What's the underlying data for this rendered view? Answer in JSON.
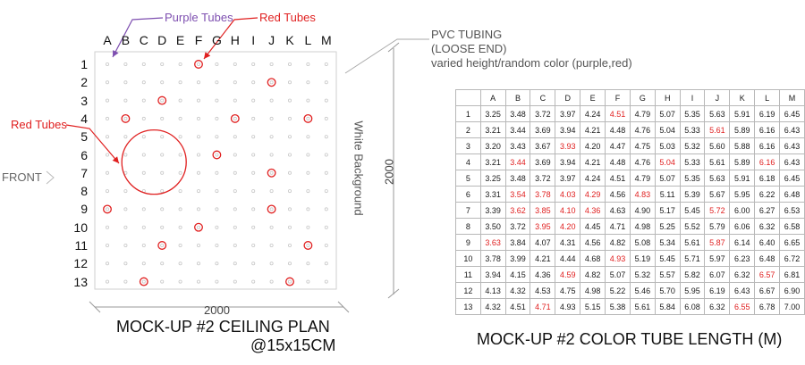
{
  "plan": {
    "columns": [
      "A",
      "B",
      "C",
      "D",
      "E",
      "F",
      "G",
      "H",
      "I",
      "J",
      "K",
      "L",
      "M"
    ],
    "rows": [
      "1",
      "2",
      "3",
      "4",
      "5",
      "6",
      "7",
      "8",
      "9",
      "10",
      "11",
      "12",
      "13"
    ],
    "red_tubes": [
      {
        "col": "F",
        "row": 1
      },
      {
        "col": "J",
        "row": 2
      },
      {
        "col": "D",
        "row": 3
      },
      {
        "col": "B",
        "row": 4
      },
      {
        "col": "H",
        "row": 4
      },
      {
        "col": "L",
        "row": 4
      },
      {
        "col": "G",
        "row": 6
      },
      {
        "col": "J",
        "row": 7
      },
      {
        "col": "A",
        "row": 9
      },
      {
        "col": "J",
        "row": 9
      },
      {
        "col": "F",
        "row": 10
      },
      {
        "col": "D",
        "row": 11
      },
      {
        "col": "L",
        "row": 11
      },
      {
        "col": "K",
        "row": 13
      },
      {
        "col": "C",
        "row": 13
      }
    ],
    "large_tube": {
      "col": "D",
      "row": 6.5
    },
    "callouts": {
      "purple": "Purple Tubes",
      "red_top": "Red Tubes",
      "red_left": "Red Tubes"
    },
    "front_label": "FRONT",
    "white_background_label": "White Background",
    "dim_width": "2000",
    "dim_height": "2000",
    "note_lines": [
      "PVC TUBING",
      "(LOOSE END)",
      "varied height/random color (purple,red)"
    ],
    "title_lines": [
      "MOCK-UP #2 CEILING PLAN",
      "@15x15CM"
    ]
  },
  "table": {
    "title": "MOCK-UP #2 COLOR TUBE LENGTH (M)",
    "headers": [
      "A",
      "B",
      "C",
      "D",
      "E",
      "F",
      "G",
      "H",
      "I",
      "J",
      "K",
      "L",
      "M"
    ],
    "rows": [
      {
        "n": "1",
        "cells": [
          "3.25",
          "3.48",
          "3.72",
          "3.97",
          "4.24",
          "4.51",
          "4.79",
          "5.07",
          "5.35",
          "5.63",
          "5.91",
          "6.19",
          "6.45"
        ],
        "red": [
          5
        ]
      },
      {
        "n": "2",
        "cells": [
          "3.21",
          "3.44",
          "3.69",
          "3.94",
          "4.21",
          "4.48",
          "4.76",
          "5.04",
          "5.33",
          "5.61",
          "5.89",
          "6.16",
          "6.43"
        ],
        "red": [
          9
        ]
      },
      {
        "n": "3",
        "cells": [
          "3.20",
          "3.43",
          "3.67",
          "3.93",
          "4.20",
          "4.47",
          "4.75",
          "5.03",
          "5.32",
          "5.60",
          "5.88",
          "6.16",
          "6.43"
        ],
        "red": [
          3
        ]
      },
      {
        "n": "4",
        "cells": [
          "3.21",
          "3.44",
          "3.69",
          "3.94",
          "4.21",
          "4.48",
          "4.76",
          "5.04",
          "5.33",
          "5.61",
          "5.89",
          "6.16",
          "6.43"
        ],
        "red": [
          1,
          7,
          11
        ]
      },
      {
        "n": "5",
        "cells": [
          "3.25",
          "3.48",
          "3.72",
          "3.97",
          "4.24",
          "4.51",
          "4.79",
          "5.07",
          "5.35",
          "5.63",
          "5.91",
          "6.18",
          "6.45"
        ],
        "red": []
      },
      {
        "n": "6",
        "cells": [
          "3.31",
          "3.54",
          "3.78",
          "4.03",
          "4.29",
          "4.56",
          "4.83",
          "5.11",
          "5.39",
          "5.67",
          "5.95",
          "6.22",
          "6.48"
        ],
        "red": [
          1,
          2,
          3,
          4,
          6
        ]
      },
      {
        "n": "7",
        "cells": [
          "3.39",
          "3.62",
          "3.85",
          "4.10",
          "4.36",
          "4.63",
          "4.90",
          "5.17",
          "5.45",
          "5.72",
          "6.00",
          "6.27",
          "6.53"
        ],
        "red": [
          1,
          2,
          3,
          4,
          9
        ]
      },
      {
        "n": "8",
        "cells": [
          "3.50",
          "3.72",
          "3.95",
          "4.20",
          "4.45",
          "4.71",
          "4.98",
          "5.25",
          "5.52",
          "5.79",
          "6.06",
          "6.32",
          "6.58"
        ],
        "red": [
          2,
          3
        ]
      },
      {
        "n": "9",
        "cells": [
          "3.63",
          "3.84",
          "4.07",
          "4.31",
          "4.56",
          "4.82",
          "5.08",
          "5.34",
          "5.61",
          "5.87",
          "6.14",
          "6.40",
          "6.65"
        ],
        "red": [
          0,
          9
        ]
      },
      {
        "n": "10",
        "cells": [
          "3.78",
          "3.99",
          "4.21",
          "4.44",
          "4.68",
          "4.93",
          "5.19",
          "5.45",
          "5.71",
          "5.97",
          "6.23",
          "6.48",
          "6.72"
        ],
        "red": [
          5
        ]
      },
      {
        "n": "11",
        "cells": [
          "3.94",
          "4.15",
          "4.36",
          "4.59",
          "4.82",
          "5.07",
          "5.32",
          "5.57",
          "5.82",
          "6.07",
          "6.32",
          "6.57",
          "6.81"
        ],
        "red": [
          3,
          11
        ]
      },
      {
        "n": "12",
        "cells": [
          "4.13",
          "4.32",
          "4.53",
          "4.75",
          "4.98",
          "5.22",
          "5.46",
          "5.70",
          "5.95",
          "6.19",
          "6.43",
          "6.67",
          "6.90"
        ],
        "red": []
      },
      {
        "n": "13",
        "cells": [
          "4.32",
          "4.51",
          "4.71",
          "4.93",
          "5.15",
          "5.38",
          "5.61",
          "5.84",
          "6.08",
          "6.32",
          "6.55",
          "6.78",
          "7.00"
        ],
        "red": [
          2,
          10
        ]
      }
    ]
  },
  "colors": {
    "red": "#e02020",
    "purple": "#7e4fb0",
    "grid_dot": "#c8c8c8",
    "board_border": "#cfcfcf"
  }
}
